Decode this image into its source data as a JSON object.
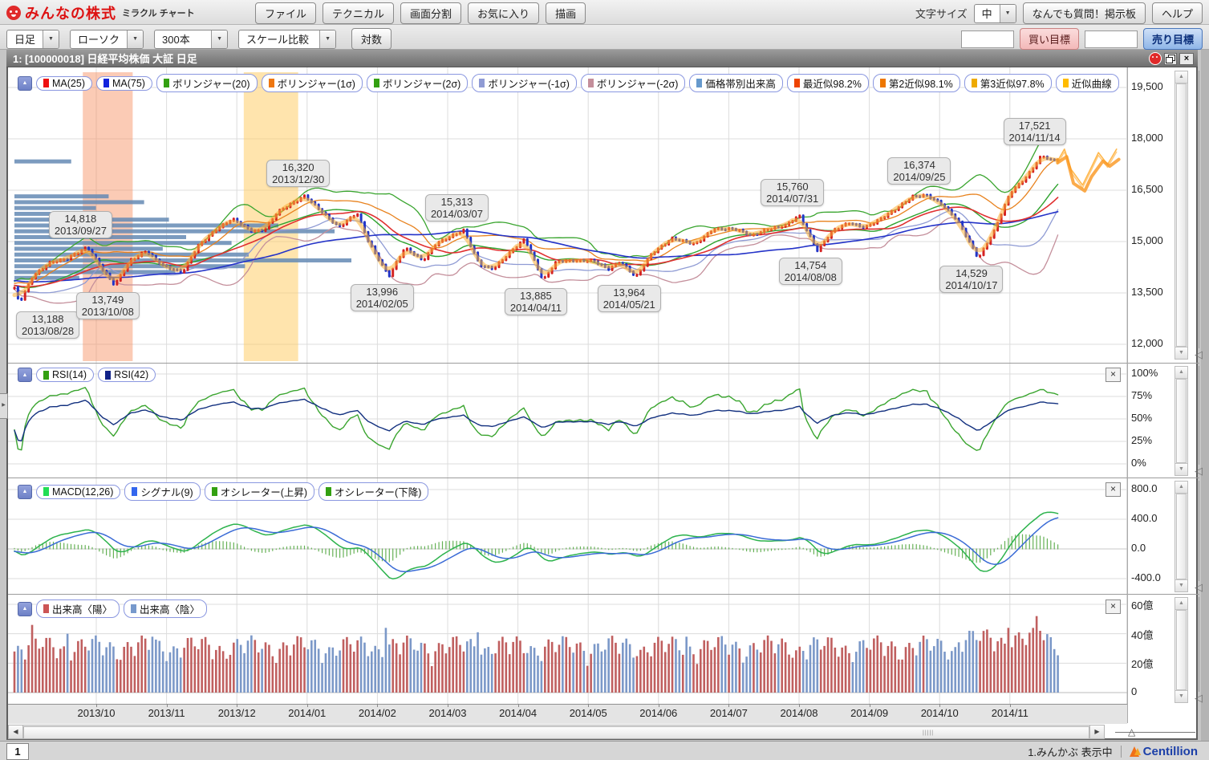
{
  "header": {
    "logo_main": "みんなの株式",
    "logo_sub": "ミラクル チャート",
    "buttons": [
      "ファイル",
      "テクニカル",
      "画面分割",
      "お気に入り",
      "描画"
    ],
    "font_size_label": "文字サイズ",
    "font_size_value": "中",
    "qa_button": "なんでも質問！掲示板",
    "help_button": "ヘルプ"
  },
  "toolbar2": {
    "period": "日足",
    "style": "ローソク",
    "bars": "300本",
    "scale": "スケール比較",
    "log_button": "対数",
    "buy_input": "",
    "sell_input": "",
    "buy_label": "買い目標",
    "sell_label": "売り目標"
  },
  "window": {
    "title": "1:  [100000018] 日経平均株価 大証 日足"
  },
  "indicators": {
    "main": [
      {
        "label": "MA(25)",
        "color": "#ee1111"
      },
      {
        "label": "MA(75)",
        "color": "#1122dd"
      },
      {
        "label": "ボリンジャー(20)",
        "color": "#33a011"
      },
      {
        "label": "ボリンジャー(1σ)",
        "color": "#ee7711"
      },
      {
        "label": "ボリンジャー(2σ)",
        "color": "#33a011"
      },
      {
        "label": "ボリンジャー(-1σ)",
        "color": "#8f9bd4"
      },
      {
        "label": "ボリンジャー(-2σ)",
        "color": "#c48f9b"
      },
      {
        "label": "価格帯別出来高",
        "color": "#6699cc"
      },
      {
        "label": "最近似98.2%",
        "color": "#ee4400"
      },
      {
        "label": "第2近似98.1%",
        "color": "#ee7700"
      },
      {
        "label": "第3近似97.8%",
        "color": "#eeaa00"
      },
      {
        "label": "近似曲線",
        "color": "#ffbb00"
      }
    ],
    "rsi": [
      {
        "label": "RSI(14)",
        "color": "#33a011"
      },
      {
        "label": "RSI(42)",
        "color": "#112288"
      }
    ],
    "macd": [
      {
        "label": "MACD(12,26)",
        "color": "#22dd55"
      },
      {
        "label": "シグナル(9)",
        "color": "#3366ee"
      },
      {
        "label": "オシレーター(上昇)",
        "color": "#33a011"
      },
      {
        "label": "オシレーター(下降)",
        "color": "#33a011"
      }
    ],
    "volume": [
      {
        "label": "出来高〈陽〉",
        "color": "#cc5555"
      },
      {
        "label": "出来高〈陰〉",
        "color": "#7799cc"
      }
    ]
  },
  "chart_data": {
    "type": "candlestick",
    "title": "日経平均株価 大証 日足",
    "bars_visible": "300本",
    "x_labels": [
      "2013/10",
      "2013/11",
      "2013/12",
      "2014/01",
      "2014/02",
      "2014/03",
      "2014/04",
      "2014/05",
      "2014/06",
      "2014/07",
      "2014/08",
      "2014/09",
      "2014/10",
      "2014/11"
    ],
    "y_axis_main": [
      "19,500",
      "18,000",
      "16,500",
      "15,000",
      "13,500",
      "12,000"
    ],
    "rsi_axis": [
      "100%",
      "75%",
      "50%",
      "25%",
      "0%"
    ],
    "macd_axis": [
      "800.0",
      "400.0",
      "0.0",
      "-400.0"
    ],
    "volume_axis": [
      "60億",
      "40億",
      "20億",
      "0"
    ],
    "price_waypoints": [
      [
        "2013/08/26",
        13650
      ],
      [
        "2013/08/28",
        13188
      ],
      [
        "2013/09/03",
        13980
      ],
      [
        "2013/09/11",
        14425
      ],
      [
        "2013/09/18",
        14505
      ],
      [
        "2013/09/27",
        14818
      ],
      [
        "2013/10/03",
        14170
      ],
      [
        "2013/10/08",
        13749
      ],
      [
        "2013/10/15",
        14440
      ],
      [
        "2013/10/22",
        14713
      ],
      [
        "2013/10/29",
        14325
      ],
      [
        "2013/11/07",
        14090
      ],
      [
        "2013/11/14",
        14876
      ],
      [
        "2013/11/22",
        15380
      ],
      [
        "2013/11/29",
        15662
      ],
      [
        "2013/12/06",
        15300
      ],
      [
        "2013/12/12",
        15340
      ],
      [
        "2013/12/18",
        15880
      ],
      [
        "2013/12/30",
        16320
      ],
      [
        "2014/01/06",
        15910
      ],
      [
        "2014/01/14",
        15420
      ],
      [
        "2014/01/22",
        15820
      ],
      [
        "2014/01/27",
        15000
      ],
      [
        "2014/02/05",
        13996
      ],
      [
        "2014/02/12",
        14800
      ],
      [
        "2014/02/20",
        14450
      ],
      [
        "2014/02/26",
        14970
      ],
      [
        "2014/03/07",
        15313
      ],
      [
        "2014/03/14",
        14330
      ],
      [
        "2014/03/20",
        14220
      ],
      [
        "2014/03/28",
        14700
      ],
      [
        "2014/04/03",
        15070
      ],
      [
        "2014/04/11",
        13885
      ],
      [
        "2014/04/17",
        14420
      ],
      [
        "2014/04/25",
        14430
      ],
      [
        "2014/05/02",
        14460
      ],
      [
        "2014/05/09",
        14200
      ],
      [
        "2014/05/14",
        14400
      ],
      [
        "2014/05/21",
        13964
      ],
      [
        "2014/05/28",
        14670
      ],
      [
        "2014/06/06",
        15080
      ],
      [
        "2014/06/16",
        14930
      ],
      [
        "2014/06/24",
        15370
      ],
      [
        "2014/07/03",
        15350
      ],
      [
        "2014/07/10",
        15190
      ],
      [
        "2014/07/17",
        15370
      ],
      [
        "2014/07/25",
        15460
      ],
      [
        "2014/07/31",
        15760
      ],
      [
        "2014/08/08",
        14754
      ],
      [
        "2014/08/15",
        15320
      ],
      [
        "2014/08/22",
        15540
      ],
      [
        "2014/08/29",
        15420
      ],
      [
        "2014/09/05",
        15670
      ],
      [
        "2014/09/12",
        15950
      ],
      [
        "2014/09/19",
        16320
      ],
      [
        "2014/09/25",
        16374
      ],
      [
        "2014/10/01",
        16080
      ],
      [
        "2014/10/08",
        15600
      ],
      [
        "2014/10/17",
        14529
      ],
      [
        "2014/10/24",
        15290
      ],
      [
        "2014/10/31",
        16410
      ],
      [
        "2014/11/07",
        16880
      ],
      [
        "2014/11/14",
        17521
      ],
      [
        "2014/11/18",
        17370
      ]
    ],
    "annotations": [
      {
        "price": "13,188",
        "date": "2013/08/28",
        "value": 13188,
        "pos": "below"
      },
      {
        "price": "14,818",
        "date": "2013/09/27",
        "value": 14818,
        "pos": "above"
      },
      {
        "price": "13,749",
        "date": "2013/10/08",
        "value": 13749,
        "pos": "below"
      },
      {
        "price": "16,320",
        "date": "2013/12/30",
        "value": 16320,
        "pos": "above"
      },
      {
        "price": "13,996",
        "date": "2014/02/05",
        "value": 13996,
        "pos": "below"
      },
      {
        "price": "15,313",
        "date": "2014/03/07",
        "value": 15313,
        "pos": "above"
      },
      {
        "price": "13,885",
        "date": "2014/04/11",
        "value": 13885,
        "pos": "below"
      },
      {
        "price": "13,964",
        "date": "2014/05/21",
        "value": 13964,
        "pos": "below"
      },
      {
        "price": "15,760",
        "date": "2014/07/31",
        "value": 15760,
        "pos": "above"
      },
      {
        "price": "14,754",
        "date": "2014/08/08",
        "value": 14754,
        "pos": "below"
      },
      {
        "price": "16,374",
        "date": "2014/09/25",
        "value": 16374,
        "pos": "above"
      },
      {
        "price": "14,529",
        "date": "2014/10/17",
        "value": 14529,
        "pos": "below"
      },
      {
        "price": "17,521",
        "date": "2014/11/14",
        "value": 17521,
        "pos": "above"
      }
    ],
    "highlight_bands": [
      {
        "from": "2013/09/25",
        "to": "2013/10/16",
        "color": "rgba(246,140,92,0.45)"
      },
      {
        "from": "2013/12/03",
        "to": "2013/12/27",
        "color": "rgba(255,205,105,0.55)"
      }
    ],
    "forecast_main": [
      [
        "2014/11/21",
        17300
      ],
      [
        "2014/11/25",
        17480
      ],
      [
        "2014/11/28",
        16700
      ],
      [
        "2014/12/02",
        16480
      ],
      [
        "2014/12/05",
        16900
      ],
      [
        "2014/12/10",
        17350
      ],
      [
        "2014/12/13",
        17200
      ],
      [
        "2014/12/17",
        17400
      ]
    ],
    "forecast_alt": [
      [
        "2014/11/21",
        17350
      ],
      [
        "2014/11/24",
        17700
      ],
      [
        "2014/11/27",
        17100
      ],
      [
        "2014/12/01",
        16650
      ],
      [
        "2014/12/04",
        17050
      ],
      [
        "2014/12/08",
        17600
      ],
      [
        "2014/12/12",
        17250
      ],
      [
        "2014/12/16",
        17700
      ]
    ],
    "volume_spikes": [
      [
        "2013/09/03",
        46
      ],
      [
        "2013/09/19",
        40
      ],
      [
        "2013/10/25",
        38
      ],
      [
        "2014/02/04",
        44
      ],
      [
        "2014/03/14",
        41
      ],
      [
        "2014/06/13",
        38
      ],
      [
        "2014/10/31",
        44
      ],
      [
        "2014/11/11",
        52
      ],
      [
        "2014/11/14",
        42
      ]
    ]
  },
  "statusbar": {
    "page_tab": "1",
    "status": "1.みんかぶ 表示中",
    "brand": "Centillion"
  }
}
